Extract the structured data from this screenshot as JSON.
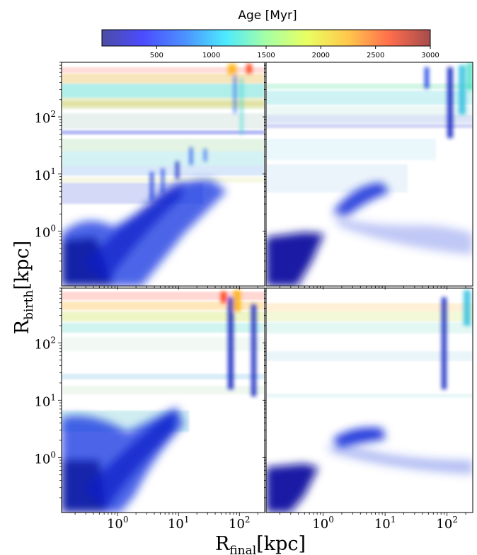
{
  "chart_data": {
    "type": "scatter",
    "description_mode": "density",
    "colorbar": {
      "label": "Age [Myr]",
      "ticks": [
        500,
        1000,
        1500,
        2000,
        2500,
        3000
      ],
      "tick_labels": [
        "500",
        "1000",
        "1500",
        "2000",
        "2500",
        "3000"
      ],
      "range": [
        0,
        3000
      ],
      "colormap": "jet"
    },
    "xlabel_main": "R",
    "xlabel_sub": "final",
    "xlabel_unit": "[kpc]",
    "ylabel_main": "R",
    "ylabel_sub": "birth",
    "ylabel_unit": "[kpc]",
    "x_axis": {
      "scale": "log",
      "lim": [
        0.12,
        260
      ],
      "ticks": [
        1,
        10,
        100
      ],
      "tick_bases": [
        "10",
        "10",
        "10"
      ],
      "tick_exps": [
        "0",
        "1",
        "2"
      ]
    },
    "y_axis": {
      "scale": "log",
      "lim": [
        0.11,
        900
      ],
      "ticks": [
        1,
        10,
        100
      ],
      "tick_bases": [
        "10",
        "10",
        "10"
      ],
      "tick_exps": [
        "0",
        "1",
        "2"
      ]
    },
    "panels": [
      {
        "name": "top-left"
      },
      {
        "name": "top-right"
      },
      {
        "name": "bottom-left"
      },
      {
        "name": "bottom-right"
      }
    ],
    "colors": {
      "jet": [
        "#00007f",
        "#0000ff",
        "#007fff",
        "#00ffff",
        "#7fff7f",
        "#ffff00",
        "#ff7f00",
        "#ff0000",
        "#7f0000"
      ]
    }
  }
}
